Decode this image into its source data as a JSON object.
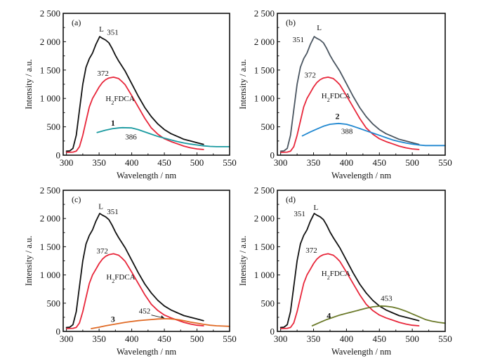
{
  "chart_data": [
    {
      "type": "line",
      "panel_label": "(a)",
      "xlabel": "Wavelength / nm",
      "ylabel": "Intensity / a.u.",
      "xlim": [
        295,
        550
      ],
      "ylim": [
        0,
        2500
      ],
      "xticks": [
        300,
        350,
        400,
        450,
        500,
        550
      ],
      "xtick_labels": [
        "300",
        "350",
        "400",
        "450",
        "500",
        "550"
      ],
      "yticks": [
        0,
        500,
        1000,
        1500,
        2000,
        2500
      ],
      "ytick_labels": [
        "0",
        "500",
        "1 000",
        "1 500",
        "2 000",
        "2 500"
      ],
      "grid": false,
      "series": [
        {
          "name": "L",
          "color": "#111111",
          "peak_label": "351",
          "x": [
            300,
            305,
            310,
            315,
            320,
            325,
            330,
            335,
            340,
            345,
            351,
            355,
            360,
            365,
            370,
            375,
            380,
            390,
            400,
            410,
            420,
            430,
            440,
            450,
            460,
            470,
            480,
            490,
            500,
            510
          ],
          "y": [
            70,
            75,
            120,
            350,
            800,
            1250,
            1550,
            1700,
            1800,
            1950,
            2090,
            2060,
            2030,
            1980,
            1880,
            1760,
            1660,
            1480,
            1260,
            1040,
            840,
            680,
            550,
            450,
            380,
            330,
            280,
            250,
            220,
            190
          ]
        },
        {
          "name": "H2FDCA",
          "color": "#e8263a",
          "peak_label": "372",
          "x": [
            300,
            310,
            315,
            320,
            325,
            330,
            335,
            340,
            345,
            350,
            355,
            360,
            365,
            372,
            380,
            385,
            390,
            400,
            410,
            420,
            430,
            440,
            450,
            460,
            470,
            480,
            490,
            500,
            510
          ],
          "y": [
            50,
            55,
            70,
            150,
            350,
            600,
            850,
            1000,
            1100,
            1200,
            1280,
            1330,
            1360,
            1375,
            1350,
            1300,
            1240,
            1050,
            850,
            650,
            480,
            370,
            290,
            240,
            200,
            160,
            130,
            110,
            100
          ]
        },
        {
          "name": "1",
          "color": "#1a9aa0",
          "peak_label": "386",
          "x": [
            347,
            360,
            370,
            380,
            386,
            400,
            410,
            420,
            430,
            440,
            450,
            460,
            470,
            480,
            490,
            500,
            510,
            520,
            530,
            540,
            550
          ],
          "y": [
            400,
            440,
            465,
            480,
            485,
            480,
            450,
            410,
            370,
            330,
            300,
            270,
            240,
            215,
            195,
            180,
            165,
            155,
            150,
            150,
            150
          ]
        }
      ],
      "annotations": [
        {
          "text": "L",
          "x": 350,
          "y": 2180
        },
        {
          "text": "351",
          "x": 362,
          "y": 2120
        },
        {
          "text": "372",
          "x": 347,
          "y": 1400
        },
        {
          "text": "H2FDCA",
          "x": 360,
          "y": 950
        },
        {
          "text": "1",
          "x": 368,
          "y": 520
        },
        {
          "text": "386",
          "x": 390,
          "y": 280
        }
      ]
    },
    {
      "type": "line",
      "panel_label": "(b)",
      "xlabel": "Wavelength / nm",
      "ylabel": "Intensity / a.u.",
      "xlim": [
        295,
        550
      ],
      "ylim": [
        0,
        2500
      ],
      "xticks": [
        300,
        350,
        400,
        450,
        500,
        550
      ],
      "xtick_labels": [
        "300",
        "350",
        "400",
        "450",
        "500",
        "550"
      ],
      "yticks": [
        0,
        500,
        1000,
        1500,
        2000,
        2500
      ],
      "ytick_labels": [
        "0",
        "500",
        "1 000",
        "1 500",
        "2 000",
        "2 500"
      ],
      "grid": false,
      "series": [
        {
          "name": "L",
          "color": "#4a5560",
          "peak_label": "351",
          "x": [
            300,
            305,
            310,
            315,
            320,
            325,
            330,
            335,
            340,
            345,
            351,
            355,
            360,
            365,
            370,
            375,
            380,
            390,
            400,
            410,
            420,
            430,
            440,
            450,
            460,
            470,
            480,
            490,
            500,
            510
          ],
          "y": [
            70,
            75,
            120,
            350,
            800,
            1250,
            1550,
            1700,
            1800,
            1950,
            2090,
            2060,
            2030,
            1980,
            1880,
            1760,
            1660,
            1480,
            1260,
            1040,
            840,
            680,
            550,
            450,
            380,
            330,
            280,
            250,
            220,
            190
          ]
        },
        {
          "name": "H2FDCA",
          "color": "#e8263a",
          "peak_label": "372",
          "x": [
            300,
            310,
            315,
            320,
            325,
            330,
            335,
            340,
            345,
            350,
            355,
            360,
            365,
            372,
            380,
            385,
            390,
            400,
            410,
            420,
            430,
            440,
            450,
            460,
            470,
            480,
            490,
            500,
            510
          ],
          "y": [
            50,
            55,
            70,
            150,
            350,
            600,
            850,
            1000,
            1100,
            1200,
            1280,
            1330,
            1360,
            1375,
            1350,
            1300,
            1240,
            1050,
            850,
            650,
            480,
            370,
            290,
            240,
            200,
            160,
            130,
            110,
            100
          ]
        },
        {
          "name": "2",
          "color": "#1f87d0",
          "peak_label": "388",
          "x": [
            333,
            345,
            355,
            365,
            375,
            388,
            400,
            410,
            420,
            430,
            440,
            450,
            460,
            470,
            480,
            490,
            500,
            510,
            520,
            530,
            540,
            550
          ],
          "y": [
            340,
            410,
            460,
            510,
            545,
            560,
            545,
            510,
            470,
            430,
            390,
            350,
            310,
            270,
            240,
            215,
            195,
            180,
            170,
            170,
            170,
            170
          ]
        }
      ],
      "annotations": [
        {
          "text": "L",
          "x": 355,
          "y": 2200
        },
        {
          "text": "351",
          "x": 318,
          "y": 1990
        },
        {
          "text": "372",
          "x": 336,
          "y": 1370
        },
        {
          "text": "H2FDCA",
          "x": 362,
          "y": 1000
        },
        {
          "text": "2",
          "x": 383,
          "y": 640
        },
        {
          "text": "388",
          "x": 392,
          "y": 380
        }
      ]
    },
    {
      "type": "line",
      "panel_label": "(c)",
      "xlabel": "Wavelength / nm",
      "ylabel": "Intensity / a.u.",
      "xlim": [
        295,
        550
      ],
      "ylim": [
        0,
        2500
      ],
      "xticks": [
        300,
        350,
        400,
        450,
        500,
        550
      ],
      "xtick_labels": [
        "300",
        "350",
        "400",
        "450",
        "500",
        "550"
      ],
      "yticks": [
        0,
        500,
        1000,
        1500,
        2000,
        2500
      ],
      "ytick_labels": [
        "0",
        "500",
        "1 000",
        "1 500",
        "2 000",
        "2 500"
      ],
      "grid": false,
      "series": [
        {
          "name": "L",
          "color": "#111111",
          "peak_label": "351",
          "x": [
            300,
            305,
            310,
            315,
            320,
            325,
            330,
            335,
            340,
            345,
            351,
            355,
            360,
            365,
            370,
            375,
            380,
            390,
            400,
            410,
            420,
            430,
            440,
            450,
            460,
            470,
            480,
            490,
            500,
            510
          ],
          "y": [
            70,
            75,
            120,
            350,
            800,
            1250,
            1550,
            1700,
            1800,
            1950,
            2090,
            2060,
            2030,
            1980,
            1880,
            1760,
            1660,
            1480,
            1260,
            1040,
            840,
            680,
            550,
            450,
            380,
            330,
            280,
            250,
            220,
            190
          ]
        },
        {
          "name": "H2FDCA",
          "color": "#e8263a",
          "peak_label": "372",
          "x": [
            300,
            310,
            315,
            320,
            325,
            330,
            335,
            340,
            345,
            350,
            355,
            360,
            365,
            372,
            380,
            385,
            390,
            400,
            410,
            420,
            430,
            440,
            450,
            460,
            470,
            480,
            490,
            500,
            510
          ],
          "y": [
            50,
            55,
            70,
            150,
            350,
            600,
            850,
            1000,
            1100,
            1200,
            1280,
            1330,
            1360,
            1375,
            1350,
            1300,
            1240,
            1050,
            850,
            650,
            480,
            370,
            290,
            240,
            200,
            160,
            130,
            110,
            100
          ]
        },
        {
          "name": "3",
          "color": "#e06a25",
          "peak_label": "452",
          "x": [
            338,
            350,
            360,
            370,
            380,
            390,
            400,
            410,
            420,
            430,
            440,
            452,
            460,
            470,
            480,
            490,
            500,
            510,
            520,
            530,
            540,
            550
          ],
          "y": [
            50,
            75,
            100,
            120,
            140,
            160,
            175,
            190,
            200,
            210,
            220,
            225,
            222,
            210,
            190,
            165,
            145,
            125,
            110,
            100,
            95,
            90
          ]
        }
      ],
      "annotations": [
        {
          "text": "L",
          "x": 349,
          "y": 2170
        },
        {
          "text": "351",
          "x": 362,
          "y": 2080
        },
        {
          "text": "372",
          "x": 346,
          "y": 1380
        },
        {
          "text": "H2FDCA",
          "x": 361,
          "y": 920
        },
        {
          "text": "3",
          "x": 368,
          "y": 170
        },
        {
          "text": "452",
          "x": 411,
          "y": 320
        }
      ]
    },
    {
      "type": "line",
      "panel_label": "(d)",
      "xlabel": "Wavelength / nm",
      "ylabel": "Intensity / a.u.",
      "xlim": [
        295,
        550
      ],
      "ylim": [
        0,
        2500
      ],
      "xticks": [
        300,
        350,
        400,
        450,
        500,
        550
      ],
      "xtick_labels": [
        "300",
        "350",
        "400",
        "450",
        "500",
        "550"
      ],
      "yticks": [
        0,
        500,
        1000,
        1500,
        2000,
        2500
      ],
      "ytick_labels": [
        "0",
        "500",
        "1 000",
        "1 500",
        "2 000",
        "2 500"
      ],
      "grid": false,
      "series": [
        {
          "name": "L",
          "color": "#111111",
          "peak_label": "351",
          "x": [
            300,
            305,
            310,
            315,
            320,
            325,
            330,
            335,
            340,
            345,
            351,
            355,
            360,
            365,
            370,
            375,
            380,
            390,
            400,
            410,
            420,
            430,
            440,
            450,
            460,
            470,
            480,
            490,
            500,
            510
          ],
          "y": [
            70,
            75,
            120,
            350,
            800,
            1250,
            1550,
            1700,
            1800,
            1950,
            2090,
            2060,
            2030,
            1980,
            1880,
            1760,
            1660,
            1480,
            1260,
            1040,
            840,
            680,
            550,
            450,
            380,
            330,
            280,
            250,
            220,
            190
          ]
        },
        {
          "name": "H2FDCA",
          "color": "#e8263a",
          "peak_label": "372",
          "x": [
            300,
            310,
            315,
            320,
            325,
            330,
            335,
            340,
            345,
            350,
            355,
            360,
            365,
            372,
            380,
            385,
            390,
            400,
            410,
            420,
            430,
            440,
            450,
            460,
            470,
            480,
            490,
            500,
            510
          ],
          "y": [
            50,
            55,
            70,
            150,
            350,
            600,
            850,
            1000,
            1100,
            1200,
            1280,
            1330,
            1360,
            1375,
            1350,
            1300,
            1240,
            1050,
            850,
            650,
            480,
            370,
            290,
            240,
            200,
            160,
            130,
            110,
            100
          ]
        },
        {
          "name": "4",
          "color": "#6b7a2a",
          "peak_label": "453",
          "x": [
            348,
            360,
            370,
            380,
            390,
            400,
            410,
            420,
            430,
            440,
            453,
            460,
            470,
            480,
            490,
            500,
            510,
            520,
            530,
            540,
            550
          ],
          "y": [
            100,
            160,
            210,
            250,
            290,
            320,
            350,
            380,
            410,
            435,
            450,
            445,
            430,
            400,
            360,
            310,
            260,
            210,
            180,
            160,
            145
          ]
        }
      ],
      "annotations": [
        {
          "text": "351",
          "x": 320,
          "y": 2040
        },
        {
          "text": "L",
          "x": 350,
          "y": 2150
        },
        {
          "text": "372",
          "x": 338,
          "y": 1390
        },
        {
          "text": "H2FDCA",
          "x": 362,
          "y": 980
        },
        {
          "text": "4",
          "x": 370,
          "y": 230
        },
        {
          "text": "453",
          "x": 452,
          "y": 540
        }
      ]
    }
  ]
}
